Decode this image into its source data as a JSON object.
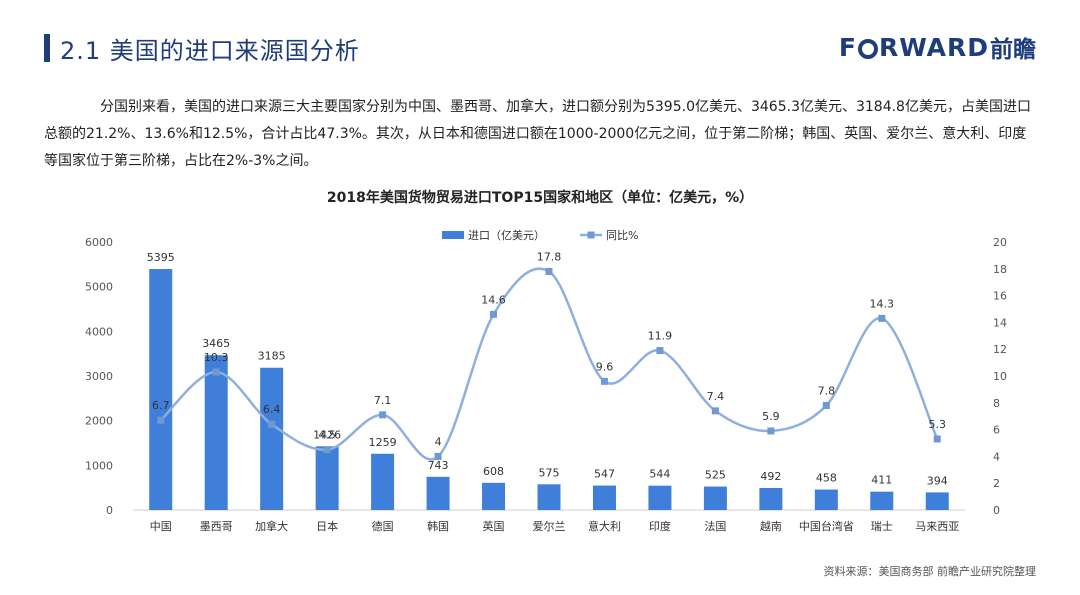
{
  "header": {
    "title": "2.1  美国的进口来源国分析",
    "accent_color": "#1f3d7a",
    "logo_text_1": "F",
    "logo_text_2": "RWARD",
    "logo_cn": "前瞻"
  },
  "paragraph": "分国别来看，美国的进口来源三大主要国家分别为中国、墨西哥、加拿大，进口额分别为5395.0亿美元、3465.3亿美元、3184.8亿美元，占美国进口总额的21.2%、13.6%和12.5%，合计占比47.3%。其次，从日本和德国进口额在1000-2000亿元之间，位于第二阶梯；韩国、英国、爱尔兰、意大利、印度等国家位于第三阶梯，占比在2%-3%之间。",
  "source": "资料来源：美国商务部  前瞻产业研究院整理",
  "chart_data": {
    "type": "bar",
    "title": "2018年美国货物贸易进口TOP15国家和地区（单位：亿美元，%）",
    "categories": [
      "中国",
      "墨西哥",
      "加拿大",
      "日本",
      "德国",
      "韩国",
      "英国",
      "爱尔兰",
      "意大利",
      "印度",
      "法国",
      "越南",
      "中国台湾省",
      "瑞士",
      "马来西亚"
    ],
    "series": [
      {
        "name": "进口（亿美元）",
        "type": "bar",
        "axis": "left",
        "color": "#3f7fd9",
        "values": [
          5395,
          3465,
          3185,
          1426,
          1259,
          743,
          608,
          575,
          547,
          544,
          525,
          492,
          458,
          411,
          394
        ]
      },
      {
        "name": "同比%",
        "type": "line",
        "axis": "right",
        "color": "#8fb0dd",
        "smooth": true,
        "values": [
          6.7,
          10.3,
          6.4,
          4.5,
          7.1,
          4,
          14.6,
          17.8,
          9.6,
          11.9,
          7.4,
          5.9,
          7.8,
          14.3,
          5.3
        ]
      }
    ],
    "y_left": {
      "min": 0,
      "max": 6000,
      "ticks": [
        0,
        1000,
        2000,
        3000,
        4000,
        5000,
        6000
      ]
    },
    "y_right": {
      "min": 0,
      "max": 20,
      "ticks": [
        0,
        2,
        4,
        6,
        8,
        10,
        12,
        14,
        16,
        18,
        20
      ]
    },
    "grid": false,
    "legend_placement": "top-center"
  }
}
